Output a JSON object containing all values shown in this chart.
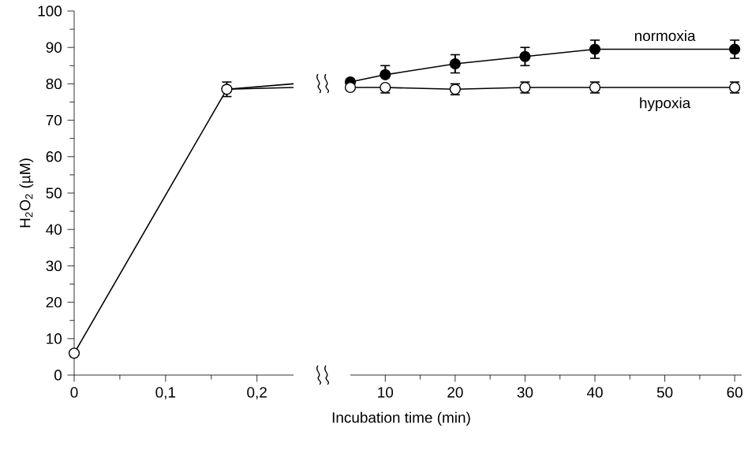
{
  "chart_data": [
    {
      "type": "line",
      "ylabel": "H$_{2}$O$_{2}$ (µM)",
      "xlim": [
        0,
        0.24
      ],
      "ylim": [
        0,
        100
      ],
      "xticks": [
        {
          "value": 0,
          "label": "0"
        },
        {
          "value": 0.1,
          "label": "0,1"
        },
        {
          "value": 0.2,
          "label": "0,2"
        }
      ],
      "yticks": [
        0,
        10,
        20,
        30,
        40,
        50,
        60,
        70,
        80,
        90,
        100
      ],
      "grid": false,
      "series": [
        {
          "color": "#ffffff",
          "x": [
            0,
            0.167
          ],
          "values": [
            6,
            78.5
          ],
          "errors": [
            null,
            2
          ],
          "marker": "circle"
        },
        {
          "color": "#000000",
          "x": [
            0.167,
            0.24
          ],
          "values": [
            78.5,
            80
          ],
          "marker": "none"
        },
        {
          "color": "#000000",
          "x": [
            0.167,
            0.24
          ],
          "values": [
            78.5,
            79
          ],
          "marker": "none"
        }
      ]
    },
    {
      "type": "line",
      "xlabel": "Incubation time (min)",
      "xlim": [
        5,
        61
      ],
      "ylim": [
        0,
        100
      ],
      "xticks": [
        10,
        20,
        30,
        40,
        50,
        60
      ],
      "tick_labels": "x",
      "grid": false,
      "series": [
        {
          "name": "normoxia",
          "color": "#000000",
          "x": [
            5,
            10,
            20,
            30,
            40,
            60
          ],
          "values": [
            80.5,
            82.5,
            85.5,
            87.5,
            89.5,
            89.5
          ],
          "errors": [
            null,
            [
              82.5,
              85
            ],
            2.5,
            2.5,
            2.5,
            2.5
          ],
          "marker": "circle"
        },
        {
          "name": "hypoxia",
          "color": "#ffffff",
          "x": [
            5,
            10,
            20,
            30,
            40,
            60
          ],
          "values": [
            79,
            79,
            78.5,
            79,
            79,
            79
          ],
          "errors": [
            null,
            [
              77.5,
              79
            ],
            1.5,
            1.5,
            1.5,
            1.5
          ],
          "marker": "circle"
        }
      ]
    }
  ]
}
